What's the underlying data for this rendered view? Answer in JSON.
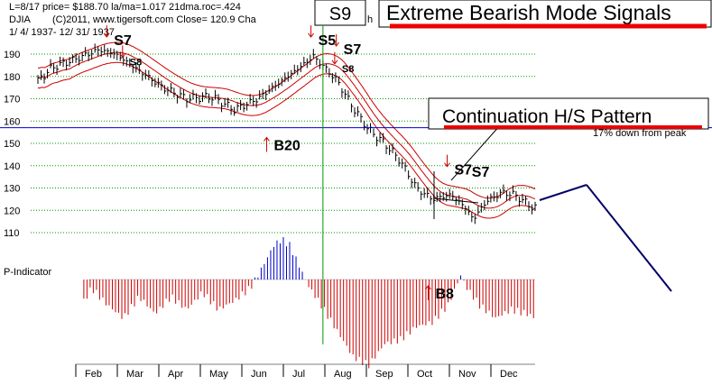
{
  "chart_data": {
    "type": "line",
    "title": "Extreme Bearish Mode Signals",
    "header": {
      "line1": "L=8/17  price= $188.70  la/ma=1.017  21dma.roc=.424",
      "line2_symbol": "DJIA",
      "line2_text": "(C)2011, www.tigersoft.com    Close=   120.9  Cha",
      "line2_tail": "h",
      "line3": "1/ 4/ 1937- 12/ 31/ 1937"
    },
    "signal_box_label": "S9",
    "pattern_label": "Continuation H/S Pattern",
    "pattern_note": "17% down from peak",
    "indicator_label": "P-Indicator",
    "ylim": [
      105,
      197
    ],
    "y_ticks": [
      110,
      120,
      130,
      140,
      150,
      160,
      170,
      180,
      190
    ],
    "months": [
      "Feb",
      "Mar",
      "Apr",
      "May",
      "Jun",
      "Jul",
      "Aug",
      "Sep",
      "Oct",
      "Nov",
      "Dec"
    ],
    "price_keypoints": [
      [
        1,
        178
      ],
      [
        10,
        184
      ],
      [
        22,
        187
      ],
      [
        40,
        192
      ],
      [
        50,
        190
      ],
      [
        60,
        185
      ],
      [
        70,
        180
      ],
      [
        80,
        175
      ],
      [
        95,
        170
      ],
      [
        110,
        171
      ],
      [
        118,
        168
      ],
      [
        125,
        165
      ],
      [
        140,
        170
      ],
      [
        155,
        178
      ],
      [
        168,
        185
      ],
      [
        175,
        189
      ],
      [
        182,
        184
      ],
      [
        190,
        178
      ],
      [
        200,
        166
      ],
      [
        210,
        156
      ],
      [
        220,
        150
      ],
      [
        230,
        142
      ],
      [
        240,
        130
      ],
      [
        250,
        125
      ],
      [
        262,
        127
      ],
      [
        270,
        122
      ],
      [
        276,
        116
      ],
      [
        284,
        124
      ],
      [
        294,
        128
      ],
      [
        302,
        127
      ],
      [
        310,
        123
      ],
      [
        314,
        121
      ]
    ],
    "indicator_keypoints": [
      [
        1,
        -8
      ],
      [
        15,
        -25
      ],
      [
        25,
        -40
      ],
      [
        35,
        -10
      ],
      [
        45,
        -30
      ],
      [
        55,
        -45
      ],
      [
        65,
        -20
      ],
      [
        75,
        -40
      ],
      [
        85,
        -20
      ],
      [
        95,
        -35
      ],
      [
        105,
        -15
      ],
      [
        115,
        -35
      ],
      [
        125,
        -25
      ],
      [
        135,
        -10
      ],
      [
        140,
        5
      ],
      [
        150,
        40
      ],
      [
        155,
        47
      ],
      [
        160,
        40
      ],
      [
        165,
        20
      ],
      [
        170,
        0
      ],
      [
        172,
        -8
      ],
      [
        180,
        -30
      ],
      [
        190,
        -60
      ],
      [
        200,
        -90
      ],
      [
        210,
        -100
      ],
      [
        220,
        -75
      ],
      [
        230,
        -70
      ],
      [
        240,
        -55
      ],
      [
        250,
        -50
      ],
      [
        260,
        -30
      ],
      [
        268,
        5
      ],
      [
        272,
        -10
      ],
      [
        280,
        -30
      ],
      [
        290,
        -45
      ],
      [
        300,
        -35
      ],
      [
        310,
        -40
      ],
      [
        315,
        -45
      ]
    ],
    "hlines": [
      {
        "y": 157,
        "color": "#0000cc"
      }
    ],
    "vlines": [
      {
        "x": 181,
        "color": "#009900"
      }
    ],
    "signals": [
      {
        "label": "S7",
        "x": 49,
        "y": 194,
        "color": "#000000",
        "arrow": "down"
      },
      {
        "label": "S8",
        "x": 59,
        "y": 185,
        "color": "#000000",
        "arrow": "down",
        "small": true
      },
      {
        "label": "S5",
        "x": 178,
        "y": 194,
        "color": "#000000",
        "arrow": "down"
      },
      {
        "label": "S7",
        "x": 194,
        "y": 190,
        "color": "#000000",
        "arrow": "down"
      },
      {
        "label": "S8",
        "x": 193,
        "y": 182,
        "color": "#000000",
        "arrow": "down",
        "small": true
      },
      {
        "label": "B20",
        "x": 150,
        "y": 147,
        "color": "#000000",
        "arrow": "up"
      },
      {
        "label": "S7",
        "x": 264,
        "y": 136,
        "color": "#000000",
        "arrow": "down"
      },
      {
        "label": "S7",
        "x": 275,
        "y": 135,
        "color": "#000000",
        "arrow": "none"
      },
      {
        "label": "B8",
        "x": 252,
        "y": -22,
        "color": "#000000",
        "arrow": "up",
        "on_indicator": true
      }
    ],
    "colors": {
      "price": "#000000",
      "band": "#cc0000",
      "grid": "#009900",
      "indicator_pos": "#0000cc",
      "indicator_neg": "#cc0000",
      "arrow": "#cc0000",
      "annotation_line": "#000066",
      "underline": "#ee0000"
    }
  }
}
